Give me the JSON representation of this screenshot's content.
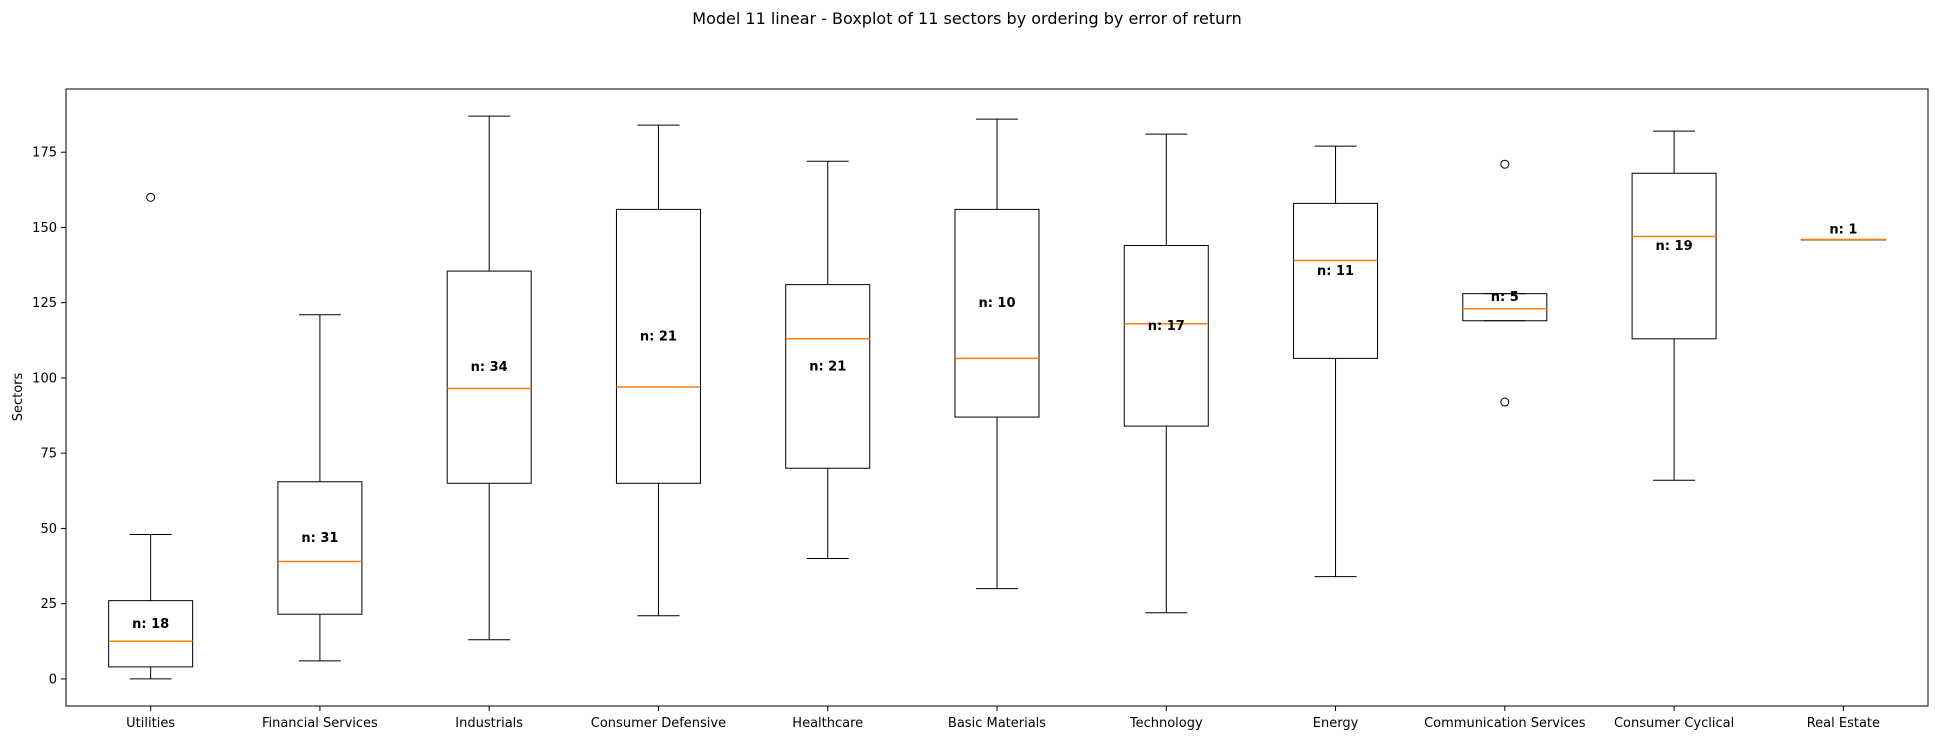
{
  "chart_data": {
    "type": "boxplot",
    "title": "Model 11 linear - Boxplot of 11 sectors by ordering by error of return",
    "xlabel": "",
    "ylabel": "Sectors",
    "ylim": [
      -9,
      196
    ],
    "yticks": [
      0,
      25,
      50,
      75,
      100,
      125,
      150,
      175
    ],
    "grid": false,
    "colors": {
      "box": "#000000",
      "median": "#ff7f0e",
      "background": "#ffffff"
    },
    "categories": [
      "Utilities",
      "Financial Services",
      "Industrials",
      "Consumer Defensive",
      "Healthcare",
      "Basic Materials",
      "Technology",
      "Energy",
      "Communication Services",
      "Consumer Cyclical",
      "Real Estate"
    ],
    "series": [
      {
        "category": "Utilities",
        "whisker_low": 0,
        "q1": 4,
        "median": 12.5,
        "q3": 26,
        "whisker_high": 48,
        "outliers": [
          160
        ],
        "n_label": "n: 18"
      },
      {
        "category": "Financial Services",
        "whisker_low": 6,
        "q1": 21.5,
        "median": 39,
        "q3": 65.5,
        "whisker_high": 121,
        "outliers": [],
        "n_label": "n: 31"
      },
      {
        "category": "Industrials",
        "whisker_low": 13,
        "q1": 65,
        "median": 96.5,
        "q3": 135.5,
        "whisker_high": 187,
        "outliers": [],
        "n_label": "n: 34"
      },
      {
        "category": "Consumer Defensive",
        "whisker_low": 21,
        "q1": 65,
        "median": 97,
        "q3": 156,
        "whisker_high": 184,
        "outliers": [],
        "n_label": "n: 21"
      },
      {
        "category": "Healthcare",
        "whisker_low": 40,
        "q1": 70,
        "median": 113,
        "q3": 131,
        "whisker_high": 172,
        "outliers": [],
        "n_label": "n: 21"
      },
      {
        "category": "Basic Materials",
        "whisker_low": 30,
        "q1": 87,
        "median": 106.5,
        "q3": 156,
        "whisker_high": 186,
        "outliers": [],
        "n_label": "n: 10"
      },
      {
        "category": "Technology",
        "whisker_low": 22,
        "q1": 84,
        "median": 118,
        "q3": 144,
        "whisker_high": 181,
        "outliers": [],
        "n_label": "n: 17"
      },
      {
        "category": "Energy",
        "whisker_low": 34,
        "q1": 106.5,
        "median": 139,
        "q3": 158,
        "whisker_high": 177,
        "outliers": [],
        "n_label": "n: 11"
      },
      {
        "category": "Communication Services",
        "whisker_low": 119,
        "q1": 119,
        "median": 123,
        "q3": 128,
        "whisker_high": 128,
        "outliers": [
          92,
          171
        ],
        "n_label": "n: 5"
      },
      {
        "category": "Consumer Cyclical",
        "whisker_low": 66,
        "q1": 113,
        "median": 147,
        "q3": 168,
        "whisker_high": 182,
        "outliers": [],
        "n_label": "n: 19"
      },
      {
        "category": "Real Estate",
        "whisker_low": 146,
        "q1": 146,
        "median": 146,
        "q3": 146,
        "whisker_high": 146,
        "outliers": [],
        "n_label": "n: 1"
      }
    ]
  }
}
